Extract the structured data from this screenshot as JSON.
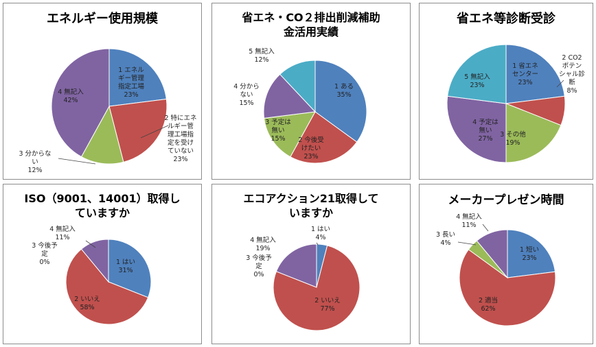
{
  "colors": {
    "blue": "#4F81BD",
    "red": "#C0504D",
    "green": "#9BBB59",
    "purple": "#8064A2",
    "cyan": "#4BACC6"
  },
  "chart_data": [
    {
      "type": "pie",
      "title": "エネルギー使用規模",
      "slices": [
        {
          "label": "1 エネルギー管理指定工場",
          "value": 23,
          "pct": "23%",
          "color": "#4F81BD"
        },
        {
          "label": "2 特にエネルギー管理工場指定を受けていない",
          "value": 23,
          "pct": "23%",
          "color": "#C0504D"
        },
        {
          "label": "3 分からない",
          "value": 12,
          "pct": "12%",
          "color": "#9BBB59"
        },
        {
          "label": "4 無記入",
          "value": 42,
          "pct": "42%",
          "color": "#8064A2"
        }
      ]
    },
    {
      "type": "pie",
      "title": "省エネ・CO２排出削減補助\n金活用実績",
      "slices": [
        {
          "label": "1 ある",
          "value": 35,
          "pct": "35%",
          "color": "#4F81BD"
        },
        {
          "label": "2 今後受けたい",
          "value": 23,
          "pct": "23%",
          "color": "#C0504D"
        },
        {
          "label": "3 予定は無い",
          "value": 15,
          "pct": "15%",
          "color": "#9BBB59"
        },
        {
          "label": "4 分からない",
          "value": 15,
          "pct": "15%",
          "color": "#8064A2"
        },
        {
          "label": "5 無記入",
          "value": 12,
          "pct": "12%",
          "color": "#4BACC6"
        }
      ]
    },
    {
      "type": "pie",
      "title": "省エネ等診断受診",
      "slices": [
        {
          "label": "1 省エネセンター",
          "value": 23,
          "pct": "23%",
          "color": "#4F81BD"
        },
        {
          "label": "2 CO2ポテンシャル診断",
          "value": 8,
          "pct": "8%",
          "color": "#C0504D"
        },
        {
          "label": "3 その他",
          "value": 19,
          "pct": "19%",
          "color": "#9BBB59"
        },
        {
          "label": "4 予定は無い",
          "value": 27,
          "pct": "27%",
          "color": "#8064A2"
        },
        {
          "label": "5 無記入",
          "value": 23,
          "pct": "23%",
          "color": "#4BACC6"
        }
      ]
    },
    {
      "type": "pie",
      "title": "ISO（9001、14001）取得し\nていますか",
      "slices": [
        {
          "label": "1 はい",
          "value": 31,
          "pct": "31%",
          "color": "#4F81BD"
        },
        {
          "label": "2 いいえ",
          "value": 58,
          "pct": "58%",
          "color": "#C0504D"
        },
        {
          "label": "3 今後予定",
          "value": 0,
          "pct": "0%",
          "color": "#9BBB59"
        },
        {
          "label": "4 無記入",
          "value": 11,
          "pct": "11%",
          "color": "#8064A2"
        }
      ]
    },
    {
      "type": "pie",
      "title": "エコアクション21取得して\nいますか",
      "slices": [
        {
          "label": "1 はい",
          "value": 4,
          "pct": "4%",
          "color": "#4F81BD"
        },
        {
          "label": "2 いいえ",
          "value": 77,
          "pct": "77%",
          "color": "#C0504D"
        },
        {
          "label": "3 今後予定",
          "value": 0,
          "pct": "0%",
          "color": "#9BBB59"
        },
        {
          "label": "4 無記入",
          "value": 19,
          "pct": "19%",
          "color": "#8064A2"
        }
      ]
    },
    {
      "type": "pie",
      "title": "メーカープレゼン時間",
      "slices": [
        {
          "label": "1 短い",
          "value": 23,
          "pct": "23%",
          "color": "#4F81BD"
        },
        {
          "label": "2 適当",
          "value": 62,
          "pct": "62%",
          "color": "#C0504D"
        },
        {
          "label": "3 長い",
          "value": 4,
          "pct": "4%",
          "color": "#9BBB59"
        },
        {
          "label": "4 無記入",
          "value": 11,
          "pct": "11%",
          "color": "#8064A2"
        }
      ]
    }
  ]
}
